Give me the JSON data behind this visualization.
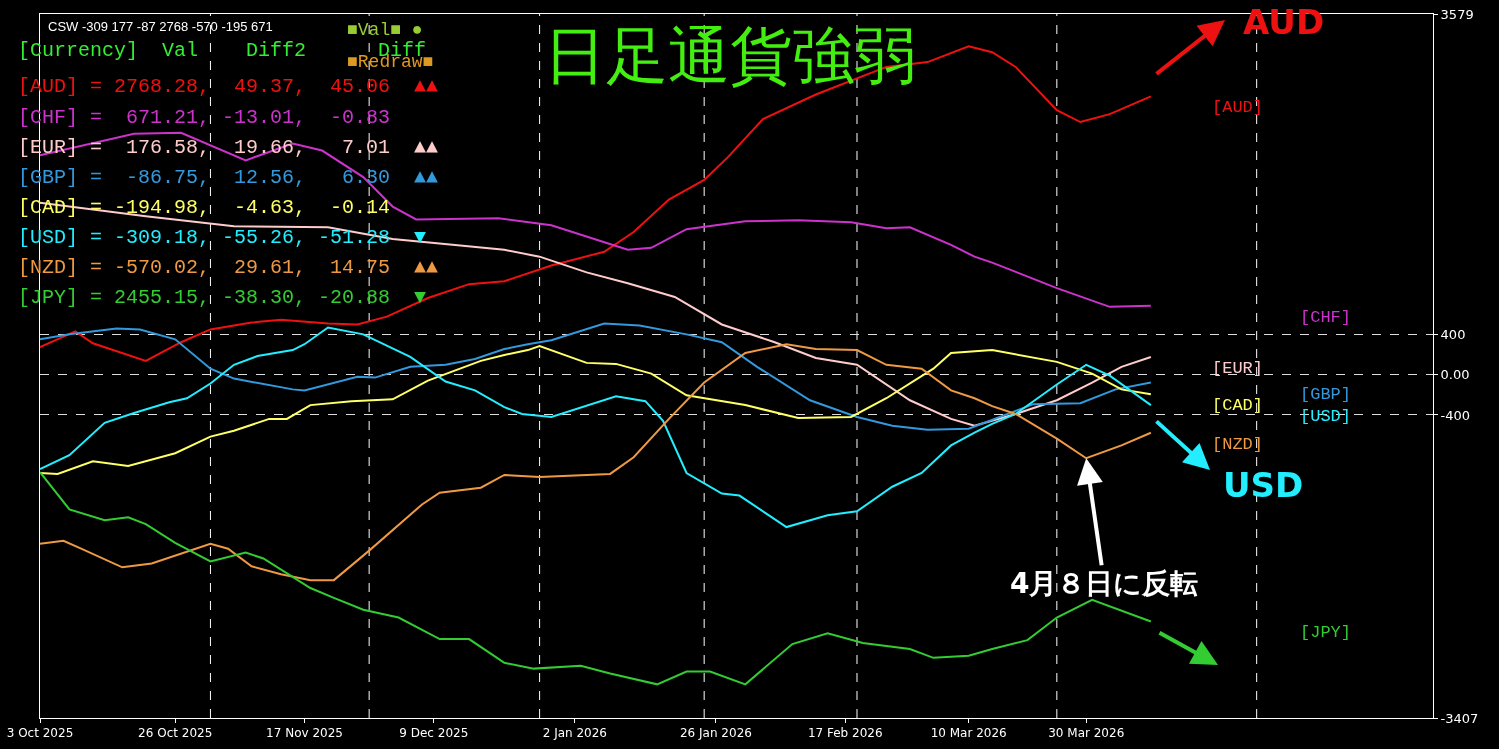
{
  "chart_data": {
    "type": "line",
    "title": "日足通貨強弱",
    "annotations": [
      "CSW -309 177 -87 2768 -570 -195 671",
      "[Currency]  Val    Diff2      Diff",
      "[AUD] = 2768.28,  49.37,  45.06  ▲▲",
      "[CHF] =  671.21, -13.01,  -0.83",
      "[EUR] =  176.58,  19.66,   7.01  ▲▲",
      "[GBP] =  -86.75,  12.56,   6.30  ▲▲",
      "[CAD] = -194.98,  -4.63,  -0.14",
      "[USD] = -309.18, -55.26, -51.28  ▼",
      "[NZD] = -570.02,  29.61,  14.75  ▲▲",
      "[JPY] = 2455.15, -38.30, -20.88  ▼",
      "■Val■ ●",
      "■Redraw■",
      "AUD",
      "USD",
      {
        "text": "4月８日に反転",
        "x": "2026-03-30",
        "y": -829
      }
    ],
    "series": [
      {
        "name": "[AUD]",
        "color": "#ee1111",
        "x": [
          "2025-10-03",
          "2025-10-09",
          "2025-10-12",
          "2025-10-21",
          "2025-10-27",
          "2025-11-01",
          "2025-11-08",
          "2025-11-13",
          "2025-11-21",
          "2025-11-26",
          "2025-12-01",
          "2025-12-08",
          "2025-12-15",
          "2025-12-21",
          "2025-12-29",
          "2026-01-07",
          "2026-01-12",
          "2026-01-18",
          "2026-01-24",
          "2026-01-28",
          "2026-02-03",
          "2026-02-12",
          "2026-02-24",
          "2026-03-03",
          "2026-03-10",
          "2026-03-14",
          "2026-03-18",
          "2026-03-25",
          "2026-03-29",
          "2026-04-03",
          "2026-04-10"
        ],
        "values": [
          273,
          429,
          312,
          137,
          322,
          449,
          517,
          546,
          507,
          498,
          576,
          761,
          898,
          927,
          1083,
          1220,
          1415,
          1737,
          1932,
          2156,
          2537,
          2780,
          3054,
          3102,
          3259,
          3200,
          3054,
          2624,
          2507,
          2585,
          2761
        ]
      },
      {
        "name": "[CHF]",
        "color": "#cc33cc",
        "x": [
          "2025-10-03",
          "2025-10-19",
          "2025-10-27",
          "2025-11-07",
          "2025-11-15",
          "2025-11-20",
          "2025-11-27",
          "2025-12-02",
          "2025-12-06",
          "2025-12-20",
          "2025-12-29",
          "2026-01-11",
          "2026-01-15",
          "2026-01-21",
          "2026-01-31",
          "2026-02-09",
          "2026-02-18",
          "2026-02-24",
          "2026-02-28",
          "2026-03-07",
          "2026-03-11",
          "2026-03-14",
          "2026-03-25",
          "2026-04-03",
          "2026-04-10"
        ],
        "values": [
          2176,
          2390,
          2400,
          2127,
          2293,
          2224,
          1961,
          1668,
          1541,
          1551,
          1483,
          1239,
          1259,
          1444,
          1522,
          1532,
          1512,
          1454,
          1463,
          1288,
          1171,
          1112,
          859,
          673,
          683
        ]
      },
      {
        "name": "[EUR]",
        "color": "#ffcccc",
        "x": [
          "2025-10-03",
          "2025-10-21",
          "2025-11-05",
          "2025-11-21",
          "2025-12-02",
          "2025-12-21",
          "2025-12-27",
          "2026-01-04",
          "2026-01-11",
          "2026-01-19",
          "2026-01-27",
          "2026-02-05",
          "2026-02-12",
          "2026-02-19",
          "2026-02-28",
          "2026-03-07",
          "2026-03-11",
          "2026-03-18",
          "2026-03-25",
          "2026-03-31",
          "2026-04-05",
          "2026-04-10"
        ],
        "values": [
          1707,
          1571,
          1473,
          1463,
          1346,
          1239,
          1171,
          1015,
          907,
          771,
          498,
          322,
          166,
          98,
          -254,
          -439,
          -507,
          -390,
          -254,
          -78,
          78,
          176
        ]
      },
      {
        "name": "[GBP]",
        "color": "#3399dd",
        "x": [
          "2025-10-03",
          "2025-10-08",
          "2025-10-16",
          "2025-10-20",
          "2025-10-26",
          "2025-11-01",
          "2025-11-05",
          "2025-11-15",
          "2025-11-17",
          "2025-11-26",
          "2025-11-29",
          "2025-12-05",
          "2025-12-11",
          "2025-12-16",
          "2025-12-21",
          "2025-12-25",
          "2025-12-29",
          "2026-01-07",
          "2026-01-13",
          "2026-01-21",
          "2026-01-27",
          "2026-02-02",
          "2026-02-11",
          "2026-02-19",
          "2026-02-25",
          "2026-03-03",
          "2026-03-10",
          "2026-03-21",
          "2026-03-29",
          "2026-04-04",
          "2026-04-10"
        ],
        "values": [
          351,
          400,
          459,
          449,
          351,
          59,
          -39,
          -146,
          -156,
          -20,
          -29,
          78,
          98,
          156,
          254,
          302,
          341,
          507,
          488,
          400,
          322,
          78,
          -254,
          -420,
          -507,
          -546,
          -537,
          -293,
          -283,
          -146,
          -78
        ]
      },
      {
        "name": "[CAD]",
        "color": "#ffff66",
        "x": [
          "2025-10-03",
          "2025-10-06",
          "2025-10-12",
          "2025-10-18",
          "2025-10-26",
          "2025-11-01",
          "2025-11-05",
          "2025-11-11",
          "2025-11-14",
          "2025-11-18",
          "2025-11-25",
          "2025-12-02",
          "2025-12-08",
          "2025-12-17",
          "2025-12-21",
          "2025-12-25",
          "2025-12-27",
          "2026-01-04",
          "2026-01-09",
          "2026-01-15",
          "2026-01-21",
          "2026-01-31",
          "2026-02-09",
          "2026-02-18",
          "2026-02-24",
          "2026-03-04",
          "2026-03-07",
          "2026-03-14",
          "2026-03-25",
          "2026-03-31",
          "2026-04-05",
          "2026-04-10"
        ],
        "values": [
          -976,
          -985,
          -859,
          -907,
          -780,
          -615,
          -556,
          -439,
          -439,
          -302,
          -263,
          -244,
          -59,
          137,
          195,
          244,
          283,
          117,
          107,
          10,
          -205,
          -302,
          -429,
          -420,
          -234,
          59,
          215,
          244,
          127,
          10,
          -146,
          -195
        ]
      },
      {
        "name": "[USD]",
        "color": "#22eeff",
        "x": [
          "2025-10-03",
          "2025-10-08",
          "2025-10-14",
          "2025-10-19",
          "2025-10-25",
          "2025-10-28",
          "2025-11-01",
          "2025-11-05",
          "2025-11-09",
          "2025-11-15",
          "2025-11-17",
          "2025-11-21",
          "2025-11-27",
          "2025-12-05",
          "2025-12-11",
          "2025-12-16",
          "2025-12-21",
          "2025-12-24",
          "2025-12-29",
          "2026-01-09",
          "2026-01-14",
          "2026-01-17",
          "2026-01-21",
          "2026-01-27",
          "2026-01-30",
          "2026-02-07",
          "2026-02-14",
          "2026-02-19",
          "2026-02-25",
          "2026-03-02",
          "2026-03-07",
          "2026-03-11",
          "2026-03-14",
          "2026-03-18",
          "2026-03-25",
          "2026-03-30",
          "2026-04-03",
          "2026-04-10"
        ],
        "values": [
          -937,
          -800,
          -478,
          -380,
          -273,
          -234,
          -88,
          98,
          185,
          244,
          302,
          468,
          400,
          176,
          -68,
          -156,
          -322,
          -390,
          -420,
          -215,
          -263,
          -459,
          -976,
          -1180,
          -1200,
          -1512,
          -1395,
          -1356,
          -1112,
          -976,
          -702,
          -576,
          -488,
          -390,
          -98,
          98,
          -10,
          -302
        ]
      },
      {
        "name": "[NZD]",
        "color": "#ee9944",
        "x": [
          "2025-10-03",
          "2025-10-07",
          "2025-10-10",
          "2025-10-17",
          "2025-10-22",
          "2025-11-01",
          "2025-11-04",
          "2025-11-08",
          "2025-11-13",
          "2025-11-18",
          "2025-11-22",
          "2025-11-28",
          "2025-12-07",
          "2025-12-10",
          "2025-12-17",
          "2025-12-21",
          "2025-12-27",
          "2026-01-08",
          "2026-01-12",
          "2026-01-18",
          "2026-01-24",
          "2026-01-31",
          "2026-02-07",
          "2026-02-12",
          "2026-02-19",
          "2026-02-24",
          "2026-03-02",
          "2026-03-07",
          "2026-03-11",
          "2026-03-14",
          "2026-03-18",
          "2026-03-25",
          "2026-03-30",
          "2026-04-05",
          "2026-04-10"
        ],
        "values": [
          -1678,
          -1649,
          -1727,
          -1912,
          -1873,
          -1678,
          -1727,
          -1902,
          -1980,
          -2039,
          -2039,
          -1746,
          -1288,
          -1171,
          -1122,
          -995,
          -1015,
          -985,
          -820,
          -439,
          -78,
          215,
          302,
          254,
          244,
          98,
          59,
          -156,
          -234,
          -312,
          -390,
          -634,
          -829,
          -702,
          -576
        ]
      },
      {
        "name": "[JPY]",
        "color": "#33cc33",
        "x": [
          "2025-10-03",
          "2025-10-08",
          "2025-10-14",
          "2025-10-18",
          "2025-10-21",
          "2025-10-26",
          "2025-11-01",
          "2025-11-07",
          "2025-11-10",
          "2025-11-18",
          "2025-11-22",
          "2025-11-27",
          "2025-12-03",
          "2025-12-10",
          "2025-12-15",
          "2025-12-19",
          "2025-12-21",
          "2025-12-26",
          "2026-01-03",
          "2026-01-08",
          "2026-01-16",
          "2026-01-21",
          "2026-01-25",
          "2026-01-31",
          "2026-02-08",
          "2026-02-14",
          "2026-02-20",
          "2026-02-28",
          "2026-03-04",
          "2026-03-10",
          "2026-03-14",
          "2026-03-20",
          "2026-03-25",
          "2026-03-31",
          "2026-04-10"
        ],
        "values": [
          -966,
          -1337,
          -1444,
          -1415,
          -1483,
          -1668,
          -1854,
          -1766,
          -1824,
          -2117,
          -2215,
          -2332,
          -2410,
          -2624,
          -2624,
          -2780,
          -2859,
          -2917,
          -2888,
          -2966,
          -3073,
          -2946,
          -2946,
          -3073,
          -2673,
          -2566,
          -2663,
          -2722,
          -2810,
          -2790,
          -2722,
          -2634,
          -2410,
          -2234,
          -2449
        ]
      }
    ],
    "xlim": [
      "2025-10-03",
      "2026-05-28"
    ],
    "xticks": [
      {
        "value": "2025-10-03",
        "label": "3 Oct 2025"
      },
      {
        "value": "2025-10-26",
        "label": "26 Oct 2025"
      },
      {
        "value": "2025-11-17",
        "label": "17 Nov 2025"
      },
      {
        "value": "2025-12-09",
        "label": "9 Dec 2025"
      },
      {
        "value": "2026-01-02",
        "label": "2 Jan 2026"
      },
      {
        "value": "2026-01-26",
        "label": "26 Jan 2026"
      },
      {
        "value": "2026-02-17",
        "label": "17 Feb 2026"
      },
      {
        "value": "2026-03-10",
        "label": "10 Mar 2026"
      },
      {
        "value": "2026-03-30",
        "label": "30 Mar 2026"
      }
    ],
    "ylim": [
      -3407,
      3579
    ],
    "yticks": [
      3579,
      400,
      {
        "value": 0,
        "label": "0.00"
      },
      -400,
      -3407
    ],
    "grid": "y",
    "ref_lines": [
      {
        "axis": "x",
        "value": "2025-11-01",
        "color": "#ffffff",
        "line_style": "dashed"
      },
      {
        "axis": "x",
        "value": "2025-11-28",
        "color": "#ffffff",
        "line_style": "dashed"
      },
      {
        "axis": "x",
        "value": "2025-12-27",
        "color": "#ffffff",
        "line_style": "dashed"
      },
      {
        "axis": "x",
        "value": "2026-01-24",
        "color": "#ffffff",
        "line_style": "dashed"
      },
      {
        "axis": "x",
        "value": "2026-02-19",
        "color": "#ffffff",
        "line_style": "dashed"
      },
      {
        "axis": "x",
        "value": "2026-03-25",
        "color": "#ffffff",
        "line_style": "dashed"
      },
      {
        "axis": "x",
        "value": "2026-04-28",
        "color": "#ffffff",
        "line_style": "dashed"
      }
    ]
  }
}
